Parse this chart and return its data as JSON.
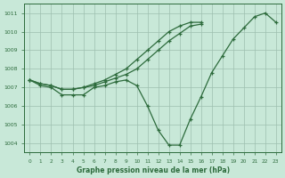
{
  "xlabel": "Graphe pression niveau de la mer (hPa)",
  "x_ticks": [
    0,
    1,
    2,
    3,
    4,
    5,
    6,
    7,
    8,
    9,
    10,
    11,
    12,
    13,
    14,
    15,
    16,
    17,
    18,
    19,
    20,
    21,
    22,
    23
  ],
  "ylim": [
    1003.5,
    1011.5
  ],
  "yticks": [
    1004,
    1005,
    1006,
    1007,
    1008,
    1009,
    1010,
    1011
  ],
  "bg_color": "#c8e8d8",
  "grid_color": "#9dbfaf",
  "line_color": "#2d6b3c",
  "line1_x": [
    0,
    1,
    2,
    3,
    4,
    5,
    6,
    7,
    8,
    9,
    10,
    11,
    12,
    13,
    14,
    15,
    16,
    17,
    18,
    19,
    20,
    21,
    22,
    23
  ],
  "line1_y": [
    1007.4,
    1007.1,
    1007.0,
    1006.6,
    1006.6,
    1006.6,
    1007.0,
    1007.1,
    1007.3,
    1007.4,
    1007.1,
    1006.0,
    1004.7,
    1003.9,
    1003.9,
    1005.3,
    1006.5,
    1007.8,
    1008.7,
    1009.6,
    1010.2,
    1010.8,
    1011.0,
    1010.5
  ],
  "line2_x": [
    0,
    1,
    2,
    3,
    4,
    5,
    6,
    7,
    8,
    9,
    10,
    11,
    12,
    13,
    14,
    15,
    16
  ],
  "line2_y": [
    1007.4,
    1007.2,
    1007.1,
    1006.9,
    1006.9,
    1007.0,
    1007.1,
    1007.3,
    1007.5,
    1007.7,
    1008.0,
    1008.5,
    1009.0,
    1009.5,
    1009.9,
    1010.3,
    1010.4
  ],
  "line3_x": [
    0,
    1,
    2,
    3,
    4,
    5,
    6,
    7,
    8,
    9,
    10,
    11,
    12,
    13,
    14,
    15,
    16
  ],
  "line3_y": [
    1007.4,
    1007.2,
    1007.1,
    1006.9,
    1006.9,
    1007.0,
    1007.2,
    1007.4,
    1007.7,
    1008.0,
    1008.5,
    1009.0,
    1009.5,
    1010.0,
    1010.3,
    1010.5,
    1010.5
  ]
}
